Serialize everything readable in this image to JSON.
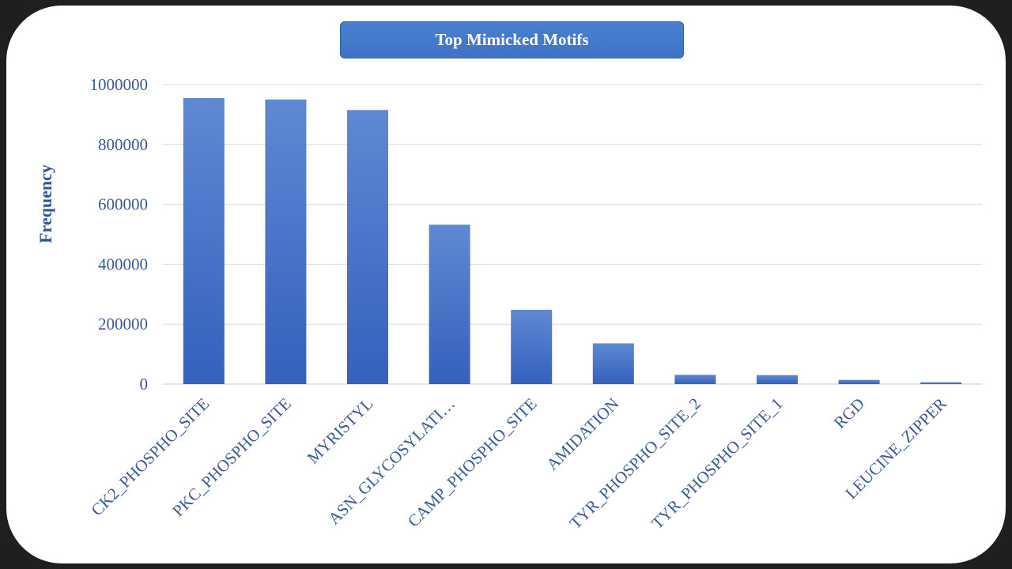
{
  "chart_data": {
    "type": "bar",
    "title": "Top Mimicked Motifs",
    "xlabel": "",
    "ylabel": "Frequency",
    "ylim": [
      0,
      1000000
    ],
    "yticks": [
      "0",
      "200000",
      "400000",
      "600000",
      "800000",
      "1000000"
    ],
    "grid": true,
    "categories": [
      "CK2_PHOSPHO_SITE",
      "PKC_PHOSPHO_SITE",
      "MYRISTYL",
      "ASN_GLYCOSYLATI…",
      "CAMP_PHOSPHO_SITE",
      "AMIDATION",
      "TYR_PHOSPHO_SITE_2",
      "TYR_PHOSPHO_SITE_1",
      "RGD",
      "LEUCINE_ZIPPER"
    ],
    "values": [
      955000,
      950000,
      915000,
      532000,
      248000,
      136000,
      31000,
      30000,
      14000,
      6000
    ],
    "bar_color": "#3e6fc7"
  }
}
